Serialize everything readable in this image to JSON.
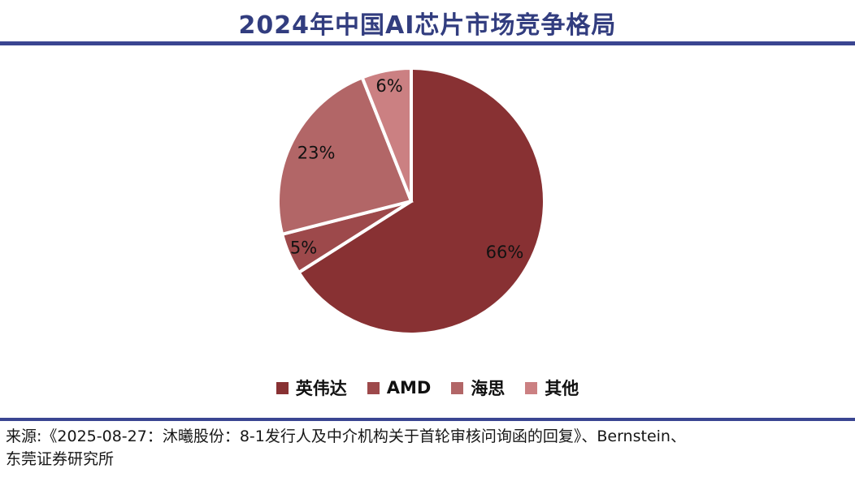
{
  "title": "2024年中国AI芯片市场竞争格局",
  "colors": {
    "title_text": "#323d7f",
    "divider": "#3a4591",
    "label_text": "#121212",
    "source_text": "#161616",
    "slice_border": "#ffffff"
  },
  "chart_data": {
    "type": "pie",
    "title": "2024年中国AI芯片市场竞争格局",
    "categories": [
      "英伟达",
      "AMD",
      "海思",
      "其他"
    ],
    "values": [
      66,
      5,
      23,
      6
    ],
    "labels": [
      "66%",
      "5%",
      "23%",
      "6%"
    ],
    "unit": "%",
    "colors": [
      "#883133",
      "#9d494b",
      "#b26667",
      "#cb8082"
    ],
    "start_angle_deg_from_top": 0,
    "direction": "clockwise",
    "legend_position": "bottom",
    "grid": false
  },
  "legend": {
    "items": [
      {
        "key": "nvidia",
        "label": "英伟达",
        "color": "#883133"
      },
      {
        "key": "amd",
        "label": "AMD",
        "color": "#9d494b"
      },
      {
        "key": "hisilicon",
        "label": "海思",
        "color": "#b26667"
      },
      {
        "key": "other",
        "label": "其他",
        "color": "#cb8082"
      }
    ]
  },
  "footer": {
    "source_line1": "来源:《2025-08-27：沐曦股份：8-1发行人及中介机构关于首轮审核问询函的回复》、Bernstein、",
    "source_line2": "东莞证券研究所"
  }
}
